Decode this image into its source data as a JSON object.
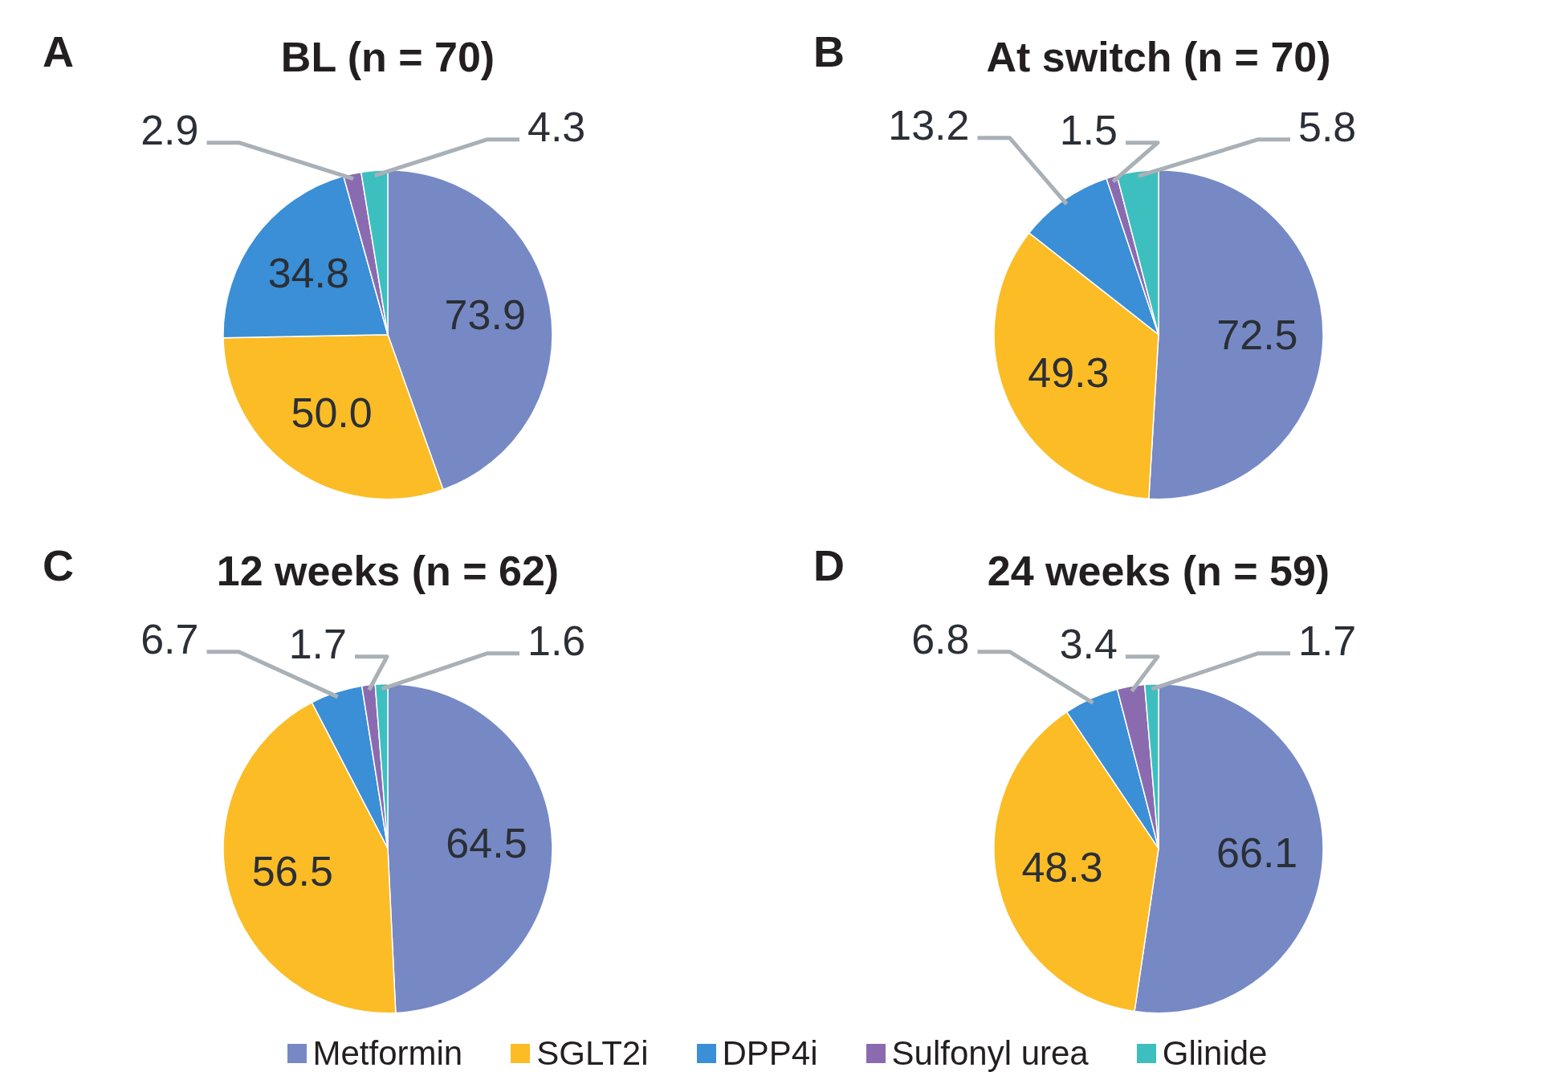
{
  "chart_data": [
    {
      "type": "pie",
      "title": "BL (n = 70)",
      "annotations": [
        "A"
      ],
      "categories": [
        "Metformin",
        "SGLT2i",
        "DPP4i",
        "Sulfonyl urea",
        "Glinide"
      ],
      "values": [
        73.9,
        50.0,
        34.8,
        2.9,
        4.3
      ],
      "value_labels": [
        "73.9",
        "50.0",
        "34.8",
        "2.9",
        "4.3"
      ],
      "colors": [
        "#7689c5",
        "#fbbc26",
        "#3a8fd6",
        "#8b6bb0",
        "#3dbfbf"
      ],
      "legend": "bottom"
    },
    {
      "type": "pie",
      "title": "At switch (n = 70)",
      "annotations": [
        "B"
      ],
      "categories": [
        null,
        null,
        null,
        null,
        null
      ],
      "values": [
        72.5,
        49.3,
        13.2,
        1.5,
        5.8
      ],
      "value_labels": [
        "72.5",
        "49.3",
        "13.2",
        "1.5",
        "5.8"
      ],
      "colors": [
        "#7689c5",
        "#fbbc26",
        "#3a8fd6",
        "#8b6bb0",
        "#3dbfbf"
      ]
    },
    {
      "type": "pie",
      "title": "12 weeks (n = 62)",
      "annotations": [
        "C"
      ],
      "categories": [
        null,
        null,
        null,
        null,
        null
      ],
      "values": [
        64.5,
        56.5,
        6.7,
        1.7,
        1.6
      ],
      "value_labels": [
        "64.5",
        "56.5",
        "6.7",
        "1.7",
        "1.6"
      ],
      "colors": [
        "#7689c5",
        "#fbbc26",
        "#3a8fd6",
        "#8b6bb0",
        "#3dbfbf"
      ]
    },
    {
      "type": "pie",
      "title": "24 weeks (n = 59)",
      "annotations": [
        "D"
      ],
      "categories": [
        null,
        null,
        null,
        null,
        null
      ],
      "values": [
        66.1,
        48.3,
        6.8,
        3.4,
        1.7
      ],
      "value_labels": [
        "66.1",
        "48.3",
        "6.8",
        "3.4",
        "1.7"
      ],
      "colors": [
        "#7689c5",
        "#fbbc26",
        "#3a8fd6",
        "#8b6bb0",
        "#3dbfbf"
      ]
    }
  ]
}
